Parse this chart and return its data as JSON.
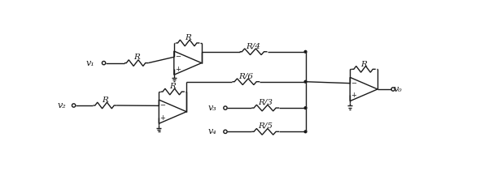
{
  "bg_color": "#ffffff",
  "lc": "#1a1a1a",
  "lw": 1.0,
  "labels": {
    "v1": "v₁",
    "v2": "v₂",
    "v3": "v₃",
    "v4": "v₄",
    "vo": "v₀",
    "R": "R",
    "R4": "R/4",
    "R6": "R/6",
    "R3": "R/3",
    "R5": "R/5"
  },
  "font_italic": true
}
